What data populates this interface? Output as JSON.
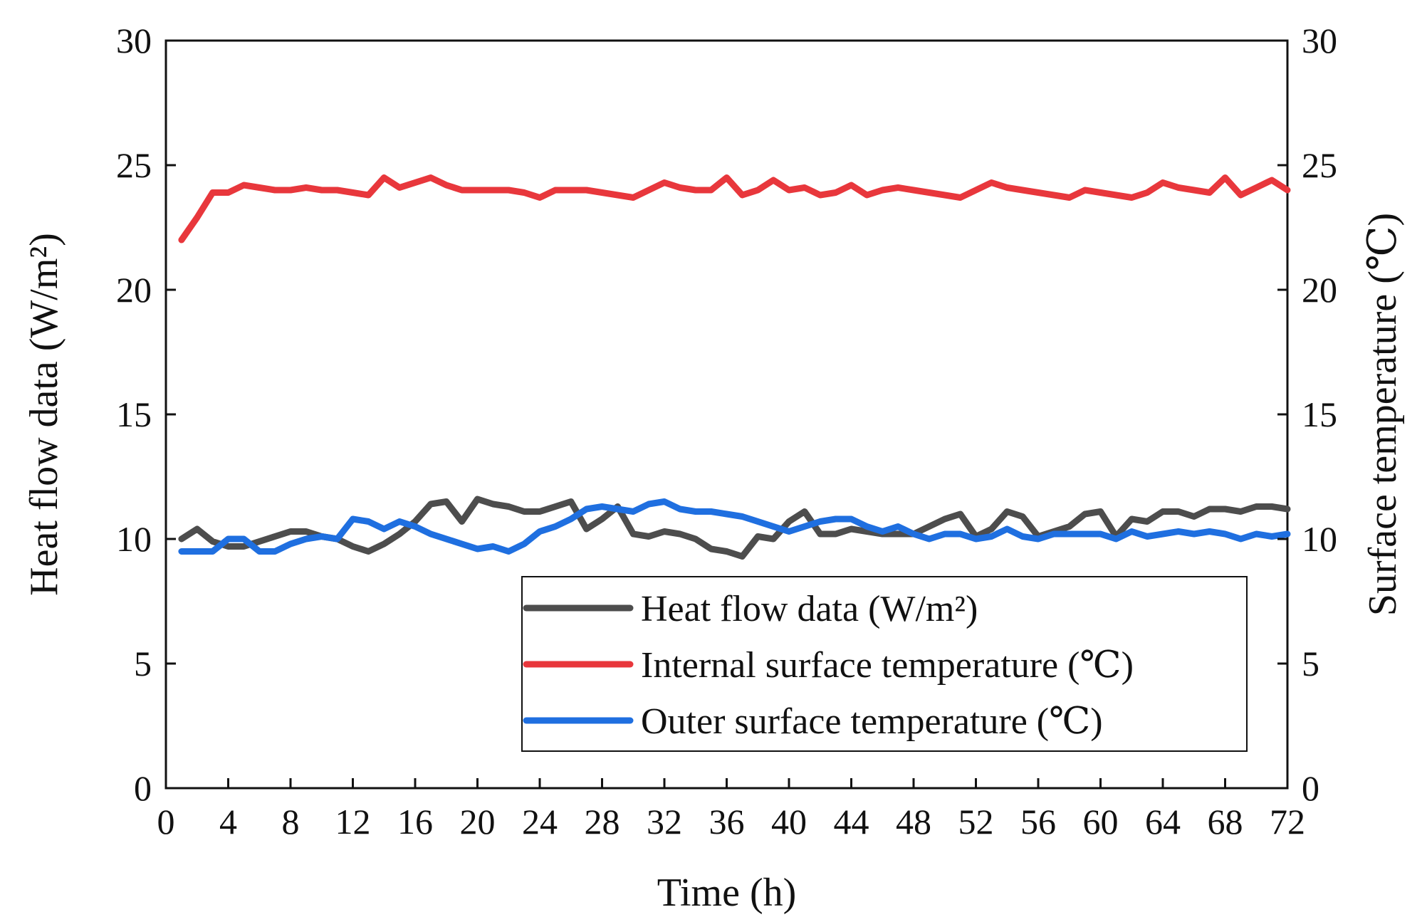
{
  "chart_data": {
    "type": "line",
    "xlabel": "Time (h)",
    "ylabel_left": "Heat flow data (W/m²)",
    "ylabel_right": "Surface temperature (℃)",
    "xlim": [
      0,
      72
    ],
    "ylim_left": [
      0,
      30
    ],
    "ylim_right": [
      0,
      30
    ],
    "x_ticks": [
      0,
      4,
      8,
      12,
      16,
      20,
      24,
      28,
      32,
      36,
      40,
      44,
      48,
      52,
      56,
      60,
      64,
      68,
      72
    ],
    "y_ticks": [
      0,
      5,
      10,
      15,
      20,
      25,
      30
    ],
    "grid": false,
    "legend_position": "bottom-right",
    "series": [
      {
        "name": "Heat flow data (W/m²)",
        "color": "#4d4d4d",
        "axis": "left",
        "x": [
          1,
          2,
          3,
          4,
          5,
          6,
          7,
          8,
          9,
          10,
          11,
          12,
          13,
          14,
          15,
          16,
          17,
          18,
          19,
          20,
          21,
          22,
          23,
          24,
          25,
          26,
          27,
          28,
          29,
          30,
          31,
          32,
          33,
          34,
          35,
          36,
          37,
          38,
          39,
          40,
          41,
          42,
          43,
          44,
          45,
          46,
          47,
          48,
          49,
          50,
          51,
          52,
          53,
          54,
          55,
          56,
          57,
          58,
          59,
          60,
          61,
          62,
          63,
          64,
          65,
          66,
          67,
          68,
          69,
          70,
          71,
          72
        ],
        "y": [
          10.0,
          10.4,
          9.9,
          9.7,
          9.7,
          9.9,
          10.1,
          10.3,
          10.3,
          10.1,
          10.0,
          9.7,
          9.5,
          9.8,
          10.2,
          10.7,
          11.4,
          11.5,
          10.7,
          11.6,
          11.4,
          11.3,
          11.1,
          11.1,
          11.3,
          11.5,
          10.4,
          10.8,
          11.3,
          10.2,
          10.1,
          10.3,
          10.2,
          10.0,
          9.6,
          9.5,
          9.3,
          10.1,
          10.0,
          10.7,
          11.1,
          10.2,
          10.2,
          10.4,
          10.3,
          10.2,
          10.2,
          10.2,
          10.5,
          10.8,
          11.0,
          10.1,
          10.4,
          11.1,
          10.9,
          10.1,
          10.3,
          10.5,
          11.0,
          11.1,
          10.1,
          10.8,
          10.7,
          11.1,
          11.1,
          10.9,
          11.2,
          11.2,
          11.1,
          11.3,
          11.3,
          11.2
        ]
      },
      {
        "name": "Internal surface temperature (℃)",
        "color": "#e8373c",
        "axis": "right",
        "x": [
          1,
          2,
          3,
          4,
          5,
          6,
          7,
          8,
          9,
          10,
          11,
          12,
          13,
          14,
          15,
          16,
          17,
          18,
          19,
          20,
          21,
          22,
          23,
          24,
          25,
          26,
          27,
          28,
          29,
          30,
          31,
          32,
          33,
          34,
          35,
          36,
          37,
          38,
          39,
          40,
          41,
          42,
          43,
          44,
          45,
          46,
          47,
          48,
          49,
          50,
          51,
          52,
          53,
          54,
          55,
          56,
          57,
          58,
          59,
          60,
          61,
          62,
          63,
          64,
          65,
          66,
          67,
          68,
          69,
          70,
          71,
          72
        ],
        "y": [
          22.0,
          22.9,
          23.9,
          23.9,
          24.2,
          24.1,
          24.0,
          24.0,
          24.1,
          24.0,
          24.0,
          23.9,
          23.8,
          24.5,
          24.1,
          24.3,
          24.5,
          24.2,
          24.0,
          24.0,
          24.0,
          24.0,
          23.9,
          23.7,
          24.0,
          24.0,
          24.0,
          23.9,
          23.8,
          23.7,
          24.0,
          24.3,
          24.1,
          24.0,
          24.0,
          24.5,
          23.8,
          24.0,
          24.4,
          24.0,
          24.1,
          23.8,
          23.9,
          24.2,
          23.8,
          24.0,
          24.1,
          24.0,
          23.9,
          23.8,
          23.7,
          24.0,
          24.3,
          24.1,
          24.0,
          23.9,
          23.8,
          23.7,
          24.0,
          23.9,
          23.8,
          23.7,
          23.9,
          24.3,
          24.1,
          24.0,
          23.9,
          24.5,
          23.8,
          24.1,
          24.4,
          24.0
        ]
      },
      {
        "name": "Outer surface temperature (℃)",
        "color": "#1f6fe0",
        "axis": "right",
        "x": [
          1,
          2,
          3,
          4,
          5,
          6,
          7,
          8,
          9,
          10,
          11,
          12,
          13,
          14,
          15,
          16,
          17,
          18,
          19,
          20,
          21,
          22,
          23,
          24,
          25,
          26,
          27,
          28,
          29,
          30,
          31,
          32,
          33,
          34,
          35,
          36,
          37,
          38,
          39,
          40,
          41,
          42,
          43,
          44,
          45,
          46,
          47,
          48,
          49,
          50,
          51,
          52,
          53,
          54,
          55,
          56,
          57,
          58,
          59,
          60,
          61,
          62,
          63,
          64,
          65,
          66,
          67,
          68,
          69,
          70,
          71,
          72
        ],
        "y": [
          9.5,
          9.5,
          9.5,
          10.0,
          10.0,
          9.5,
          9.5,
          9.8,
          10.0,
          10.1,
          10.0,
          10.8,
          10.7,
          10.4,
          10.7,
          10.5,
          10.2,
          10.0,
          9.8,
          9.6,
          9.7,
          9.5,
          9.8,
          10.3,
          10.5,
          10.8,
          11.2,
          11.3,
          11.2,
          11.1,
          11.4,
          11.5,
          11.2,
          11.1,
          11.1,
          11.0,
          10.9,
          10.7,
          10.5,
          10.3,
          10.5,
          10.7,
          10.8,
          10.8,
          10.5,
          10.3,
          10.5,
          10.2,
          10.0,
          10.2,
          10.2,
          10.0,
          10.1,
          10.4,
          10.1,
          10.0,
          10.2,
          10.2,
          10.2,
          10.2,
          10.0,
          10.3,
          10.1,
          10.2,
          10.3,
          10.2,
          10.3,
          10.2,
          10.0,
          10.2,
          10.1,
          10.2
        ]
      }
    ]
  }
}
